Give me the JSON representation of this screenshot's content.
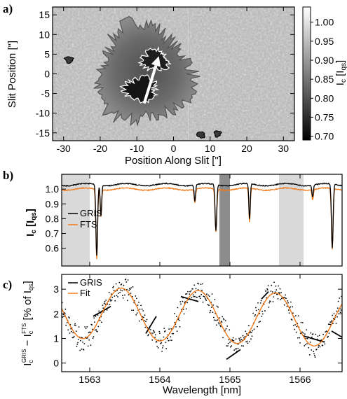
{
  "figure": {
    "panels": [
      "a)",
      "b)",
      "c)"
    ]
  },
  "chart_data": [
    {
      "type": "heatmap",
      "panel": "a)",
      "xlabel": "Position Along Slit [\"]",
      "ylabel": "Slit Position [\"]",
      "xlim": [
        -33,
        33
      ],
      "ylim": [
        -17,
        17
      ],
      "xticks": [
        -30,
        -20,
        -10,
        0,
        10,
        20,
        30
      ],
      "yticks": [
        -15,
        -10,
        -5,
        0,
        5,
        10,
        15
      ],
      "colorbar": {
        "label": "I_c [I_qs]",
        "range": [
          0.69,
          1.04
        ],
        "ticks": [
          "1.00",
          "0.95",
          "0.90",
          "0.85",
          "0.80",
          "0.75",
          "0.70"
        ],
        "tick_values": [
          1.0,
          0.95,
          0.9,
          0.85,
          0.8,
          0.75,
          0.7
        ]
      },
      "features": {
        "penumbra_center": [
          -8,
          0
        ],
        "umbra_cores": [
          [
            -9,
            -4
          ],
          [
            -5,
            3.5
          ]
        ],
        "arrow": {
          "from": [
            -8,
            -7.5
          ],
          "to": [
            -4,
            4.5
          ]
        },
        "colors": {
          "contour_outer": "#555555",
          "contour_inner": "#ffffff",
          "arrow": "#ffffff"
        }
      }
    },
    {
      "type": "line",
      "panel": "b)",
      "xlabel": "",
      "ylabel": "I_c [I_qs]",
      "xlim": [
        1562.6,
        1566.6
      ],
      "ylim": [
        0.48,
        1.1
      ],
      "yticks": [
        "1.0",
        "0.9",
        "0.8",
        "0.7",
        "0.6"
      ],
      "ytick_values": [
        1.0,
        0.9,
        0.8,
        0.7,
        0.6
      ],
      "shaded_regions": [
        {
          "x": [
            1562.6,
            1563.0
          ],
          "color": "#d9d9d9"
        },
        {
          "x": [
            1564.85,
            1565.0
          ],
          "color": "#8c8c8c"
        },
        {
          "x": [
            1565.7,
            1566.05
          ],
          "color": "#d9d9d9"
        }
      ],
      "absorption_lines": [
        {
          "center": 1563.1,
          "depth_gris": 0.48,
          "depth_fts": 0.47
        },
        {
          "center": 1563.16,
          "depth_gris": 0.2,
          "depth_fts": 0.18
        },
        {
          "center": 1564.5,
          "depth_gris": 0.11,
          "depth_fts": 0.09
        },
        {
          "center": 1564.8,
          "depth_gris": 0.31,
          "depth_fts": 0.29
        },
        {
          "center": 1565.28,
          "depth_gris": 0.24,
          "depth_fts": 0.23
        },
        {
          "center": 1566.18,
          "depth_gris": 0.08,
          "depth_fts": 0.07
        },
        {
          "center": 1566.46,
          "depth_gris": 0.43,
          "depth_fts": 0.41
        }
      ],
      "continuum": {
        "gris": 1.03,
        "fts": 1.0
      },
      "series": [
        {
          "name": "GRIS",
          "color": "#000000"
        },
        {
          "name": "FTS",
          "color": "#f27a1a"
        }
      ],
      "legend": "left"
    },
    {
      "type": "line",
      "panel": "c)",
      "xlabel": "Wavelength [nm]",
      "ylabel": "I_c^GRIS − I_c^FTS [% of I_qs]",
      "xlim": [
        1562.6,
        1566.6
      ],
      "ylim": [
        -0.35,
        3.6
      ],
      "xticks": [
        1563,
        1564,
        1565,
        1566
      ],
      "yticks": [
        0,
        1,
        2,
        3
      ],
      "fit": {
        "offset": 1.9,
        "amplitude": 1.05,
        "period": 1.1,
        "phase_x": 1563.45,
        "slope": -0.09
      },
      "gris_segments": [
        {
          "x": [
            1563.05,
            1563.3
          ],
          "y": [
            1.9,
            2.3
          ]
        },
        {
          "x": [
            1563.8,
            1563.95
          ],
          "y": [
            1.2,
            1.9
          ]
        },
        {
          "x": [
            1564.3,
            1564.55
          ],
          "y": [
            2.7,
            2.5
          ]
        },
        {
          "x": [
            1564.95,
            1565.15
          ],
          "y": [
            0.15,
            0.55
          ]
        },
        {
          "x": [
            1565.45,
            1565.55
          ],
          "y": [
            2.6,
            2.9
          ]
        },
        {
          "x": [
            1566.05,
            1566.35
          ],
          "y": [
            1.1,
            0.85
          ]
        },
        {
          "x": [
            1566.45,
            1566.6
          ],
          "y": [
            1.3,
            1.05
          ]
        }
      ],
      "series": [
        {
          "name": "GRIS",
          "color": "#000000"
        },
        {
          "name": "Fit",
          "color": "#f27a1a"
        }
      ],
      "legend": "top-left"
    }
  ]
}
